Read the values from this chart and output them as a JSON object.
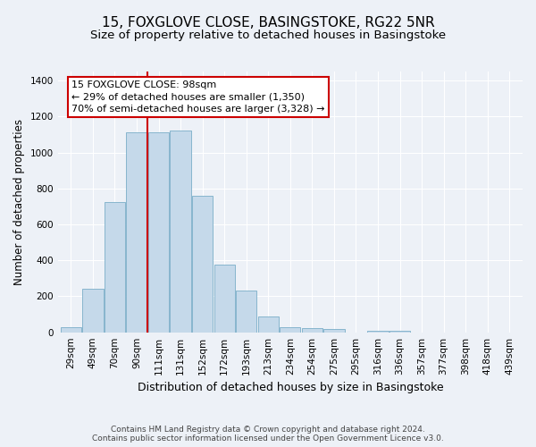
{
  "title": "15, FOXGLOVE CLOSE, BASINGSTOKE, RG22 5NR",
  "subtitle": "Size of property relative to detached houses in Basingstoke",
  "xlabel": "Distribution of detached houses by size in Basingstoke",
  "ylabel": "Number of detached properties",
  "footer_line1": "Contains HM Land Registry data © Crown copyright and database right 2024.",
  "footer_line2": "Contains public sector information licensed under the Open Government Licence v3.0.",
  "categories": [
    "29sqm",
    "49sqm",
    "70sqm",
    "90sqm",
    "111sqm",
    "131sqm",
    "152sqm",
    "172sqm",
    "193sqm",
    "213sqm",
    "234sqm",
    "254sqm",
    "275sqm",
    "295sqm",
    "316sqm",
    "336sqm",
    "357sqm",
    "377sqm",
    "398sqm",
    "418sqm",
    "439sqm"
  ],
  "bar_heights": [
    30,
    240,
    725,
    1110,
    1110,
    1120,
    760,
    375,
    230,
    90,
    30,
    25,
    20,
    0,
    10,
    10,
    0,
    0,
    0,
    0,
    0
  ],
  "bar_color": "#c5d9ea",
  "bar_edge_color": "#7aaec8",
  "vline_x": 3.5,
  "vline_color": "#cc0000",
  "annotation_line1": "15 FOXGLOVE CLOSE: 98sqm",
  "annotation_line2": "← 29% of detached houses are smaller (1,350)",
  "annotation_line3": "70% of semi-detached houses are larger (3,328) →",
  "annotation_box_facecolor": "#ffffff",
  "annotation_box_edgecolor": "#cc0000",
  "ylim": [
    0,
    1450
  ],
  "yticks": [
    0,
    200,
    400,
    600,
    800,
    1000,
    1200,
    1400
  ],
  "background_color": "#edf1f7",
  "grid_color": "#ffffff",
  "title_fontsize": 11,
  "subtitle_fontsize": 9.5,
  "ylabel_fontsize": 8.5,
  "xlabel_fontsize": 9,
  "tick_fontsize": 7.5,
  "annotation_fontsize": 8,
  "footer_fontsize": 6.5
}
